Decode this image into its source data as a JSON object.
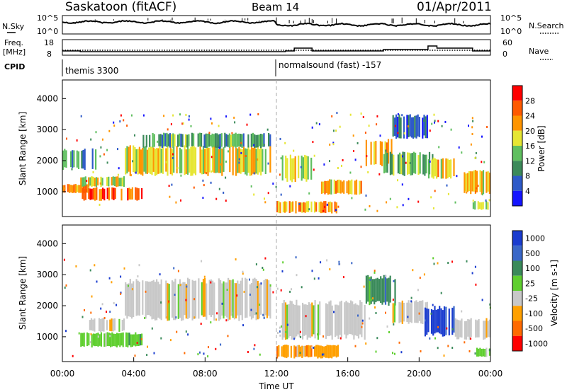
{
  "header": {
    "station": "Saskatoon (fitACF)",
    "beam": "Beam 14",
    "date": "01/Apr/2011"
  },
  "top_panels": {
    "nsky_label": "N.Sky",
    "nsky_tick_top": "10^5",
    "nsky_tick_bottom": "10^0",
    "nsearch_label": "N.Search",
    "nsearch_tick_top": "10^5",
    "nsearch_tick_bottom": "10^0",
    "freq_label": "Freq.",
    "freq_unit": "[MHz]",
    "freq_tick_top": "18",
    "freq_tick_bottom": "8",
    "nave_label": "Nave",
    "nave_tick_top": "60",
    "nave_tick_bottom": "0",
    "cpid_label": "CPID",
    "cpid_1": "themis 3300",
    "cpid_2": "normalsound (fast) -157"
  },
  "chart_data": [
    {
      "type": "heatmap",
      "name": "power",
      "ylabel": "Slant Range [km]",
      "yticks": [
        "1000",
        "2000",
        "3000",
        "4000"
      ],
      "ylim": [
        200,
        4600
      ],
      "colorbar_label": "Power [dB]",
      "colorbar_ticks": [
        "4",
        "8",
        "12",
        "16",
        "20",
        "24",
        "28"
      ],
      "colorbar_colors": [
        "#1515ff",
        "#2e5ac8",
        "#3c8a5a",
        "#5fbf5f",
        "#e6e633",
        "#ff9500",
        "#ff5a00",
        "#ff0000"
      ],
      "blobs": [
        {
          "t0": 0.0,
          "t1": 1.5,
          "r0": 950,
          "r1": 1250,
          "level": 0.75
        },
        {
          "t0": 1.0,
          "t1": 4.5,
          "r0": 700,
          "r1": 1150,
          "level": 0.9
        },
        {
          "t0": 1.0,
          "t1": 3.5,
          "r0": 1150,
          "r1": 1500,
          "level": 0.55
        },
        {
          "t0": 3.5,
          "t1": 11.7,
          "r0": 1500,
          "r1": 2500,
          "level": 0.6
        },
        {
          "t0": 4.5,
          "t1": 11.7,
          "r0": 2400,
          "r1": 2900,
          "level": 0.35
        },
        {
          "t0": 0.0,
          "t1": 2.0,
          "r0": 1700,
          "r1": 2400,
          "level": 0.3
        },
        {
          "t0": 12.0,
          "t1": 15.5,
          "r0": 300,
          "r1": 700,
          "level": 0.7
        },
        {
          "t0": 12.3,
          "t1": 14.0,
          "r0": 1300,
          "r1": 2200,
          "level": 0.55
        },
        {
          "t0": 14.5,
          "t1": 16.8,
          "r0": 900,
          "r1": 1400,
          "level": 0.65
        },
        {
          "t0": 17.0,
          "t1": 18.5,
          "r0": 1800,
          "r1": 2700,
          "level": 0.7
        },
        {
          "t0": 18.0,
          "t1": 20.8,
          "r0": 1500,
          "r1": 2300,
          "level": 0.45
        },
        {
          "t0": 20.5,
          "t1": 22.0,
          "r0": 1400,
          "r1": 2100,
          "level": 0.65
        },
        {
          "t0": 22.5,
          "t1": 24.0,
          "r0": 900,
          "r1": 1700,
          "level": 0.6
        },
        {
          "t0": 23.0,
          "t1": 24.0,
          "r0": 400,
          "r1": 700,
          "level": 0.5
        },
        {
          "t0": 18.5,
          "t1": 20.5,
          "r0": 2700,
          "r1": 3500,
          "level": 0.2
        }
      ]
    },
    {
      "type": "heatmap",
      "name": "velocity",
      "ylabel": "Slant Range [km]",
      "yticks": [
        "1000",
        "2000",
        "3000",
        "4000"
      ],
      "ylim": [
        200,
        4600
      ],
      "colorbar_label": "Velocity [m s-1]",
      "colorbar_ticks": [
        "1000",
        "500",
        "100",
        "25",
        "-25",
        "-100",
        "-500",
        "-1000"
      ],
      "colorbar_colors": [
        "#1a3ccf",
        "#3a67c8",
        "#3a8a5a",
        "#5fcf2f",
        "#c8c8c8",
        "#ffa000",
        "#ff6a00",
        "#ff0000"
      ],
      "blobs": [
        {
          "t0": 1.0,
          "t1": 4.5,
          "r0": 650,
          "r1": 1150,
          "level": 3
        },
        {
          "t0": 1.5,
          "t1": 3.5,
          "r0": 1150,
          "r1": 1600,
          "level": 4
        },
        {
          "t0": 3.5,
          "t1": 11.7,
          "r0": 1500,
          "r1": 2900,
          "level": 4
        },
        {
          "t0": 12.0,
          "t1": 15.5,
          "r0": 300,
          "r1": 750,
          "level": 5
        },
        {
          "t0": 12.3,
          "t1": 17.0,
          "r0": 900,
          "r1": 2200,
          "level": 4
        },
        {
          "t0": 17.0,
          "t1": 18.7,
          "r0": 2000,
          "r1": 3000,
          "level": 2
        },
        {
          "t0": 18.5,
          "t1": 20.5,
          "r0": 1400,
          "r1": 2200,
          "level": 4
        },
        {
          "t0": 20.3,
          "t1": 22.0,
          "r0": 1000,
          "r1": 2000,
          "level": 0
        },
        {
          "t0": 22.0,
          "t1": 24.0,
          "r0": 900,
          "r1": 1600,
          "level": 4
        },
        {
          "t0": 23.2,
          "t1": 24.0,
          "r0": 350,
          "r1": 650,
          "level": 3
        }
      ]
    }
  ],
  "x_axis": {
    "label": "Time UT",
    "ticks": [
      "00:00",
      "04:00",
      "08:00",
      "12:00",
      "16:00",
      "20:00",
      "00:00"
    ]
  },
  "colors": {
    "frame": "#000000",
    "dashed_divider": "#aaaaaa"
  }
}
